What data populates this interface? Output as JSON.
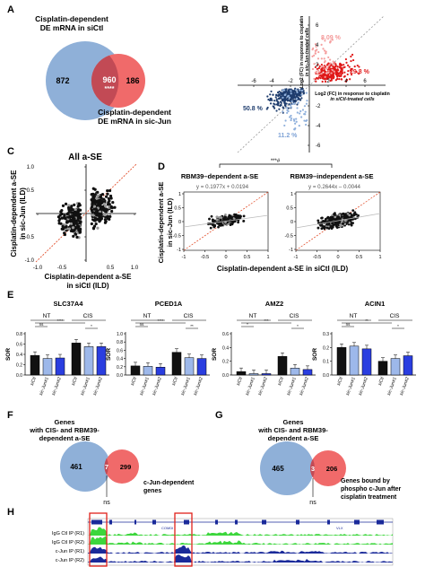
{
  "panels": {
    "A": {
      "letter": "A",
      "set1_title_line1": "Cisplatin-dependent",
      "set1_title_line2": "DE mRNA in siCtl",
      "set2_title_line1": "Cisplatin-dependent",
      "set2_title_line2": "DE mRNA in sic-Jun",
      "only1": "872",
      "both": "960",
      "sig": "****",
      "only2": "186",
      "color1": "#8fb0d8",
      "color2": "#f06a6a",
      "color_overlap": "#c24a55"
    },
    "B": {
      "letter": "B",
      "y_label_line1": "Log2 (FC) in response to cisplatin",
      "y_label_line2": "in sic-Jun-treated cells",
      "x_label_line1": "Log2 (FC) in response to cisplatin",
      "x_label_line2": "in siCtl-treated cells",
      "pct_pink": "8.09 %",
      "pct_red": "29.8 %",
      "pct_navy": "50.8 %",
      "pct_lightblue": "11.2 %",
      "x_ticks": [
        "-6",
        "-4",
        "-2",
        "2",
        "4",
        "6"
      ],
      "y_ticks": [
        "6",
        "4",
        "2",
        "-2",
        "-4",
        "-6"
      ]
    },
    "C": {
      "letter": "C",
      "title": "All a-SE",
      "y_label_line1": "Cisplatin-dependent a-SE",
      "y_label_line2": "in sic-Jun (ILD)",
      "x_label_line1": "Cisplatin-dependent a-SE",
      "x_label_line2": "in siCtl (ILD)",
      "x_ticks": [
        "-1.0",
        "-0.5",
        "0.5",
        "1.0"
      ],
      "y_ticks": [
        "1.0",
        "0.5",
        "-0.5",
        "-1.0"
      ]
    },
    "D": {
      "letter": "D",
      "sig": "***#",
      "left_title": "RBM39–dependent a-SE",
      "right_title": "RBM39–independent a-SE",
      "left_eq": "y = 0.1977x + 0.0194",
      "right_eq": "y = 0.2644x – 0.0044",
      "y_label_line1": "Cisplatin-dependent a-SE",
      "y_label_line2": "in sic-Jun (ILD)",
      "x_label": "Cisplatin-dependent a-SE in siCtl (ILD)",
      "x_ticks": [
        "-1",
        "-0.5",
        "0",
        "0.5",
        "1"
      ],
      "y_ticks": [
        "1",
        "0.5",
        "0",
        "-0.5",
        "-1"
      ]
    },
    "E": {
      "letter": "E",
      "y_label": "SOR",
      "group_nt": "NT",
      "group_cis": "CIS",
      "bar_labels": [
        "siCtl",
        "sic-Jun#1",
        "sic-Jun#2",
        "siCtl",
        "sic-Jun#1",
        "sic-Jun#2"
      ],
      "genes": [
        {
          "name": "SLC37A4",
          "ymax": 0.8,
          "ticks": [
            "0.8",
            "0.6",
            "0.4",
            "0.2",
            "0.0"
          ],
          "values": [
            0.38,
            0.32,
            0.33,
            0.62,
            0.55,
            0.55
          ],
          "sig": [
            "ns",
            "****",
            "*"
          ]
        },
        {
          "name": "PCED1A",
          "ymax": 1.0,
          "ticks": [
            "1.0",
            "0.8",
            "0.6",
            "0.4",
            "0.2",
            "0.0"
          ],
          "values": [
            0.22,
            0.21,
            0.19,
            0.55,
            0.42,
            0.4
          ],
          "sig": [
            "ns",
            "****",
            "**"
          ]
        },
        {
          "name": "AMZ2",
          "ymax": 0.6,
          "ticks": [
            "0.6",
            "0.4",
            "0.2",
            "0.0"
          ],
          "values": [
            0.05,
            0.02,
            0.02,
            0.27,
            0.1,
            0.08
          ],
          "sig": [
            "*",
            "***",
            "*"
          ]
        },
        {
          "name": "ACIN1",
          "ymax": 0.3,
          "ticks": [
            "0.3",
            "0.2",
            "0.1",
            "0.0"
          ],
          "values": [
            0.2,
            0.21,
            0.19,
            0.1,
            0.12,
            0.14
          ],
          "sig": [
            "ns",
            "**",
            "*"
          ]
        }
      ]
    },
    "F": {
      "letter": "F",
      "title_line1": "Genes",
      "title_line2": "with CIS- and RBM39-",
      "title_line3": "dependent a-SE",
      "only1": "461",
      "both": "7",
      "only2": "299",
      "set2_line1": "c-Jun-dependent",
      "set2_line2": "genes",
      "ns": "ns"
    },
    "G": {
      "letter": "G",
      "title_line1": "Genes",
      "title_line2": "with CIS- and RBM39-",
      "title_line3": "dependent a-SE",
      "only1": "465",
      "both": "3",
      "only2": "206",
      "set2_line1": "Genes bound by",
      "set2_line2": "phospho c-Jun after",
      "set2_line3": "cisplatin treatment",
      "ns": "ns"
    },
    "H": {
      "letter": "H",
      "gene_label": "COMDI",
      "gene_label_right": "VLX",
      "tracks": [
        "IgG Ctl IP (R1)",
        "IgG Ctl IP (R2)",
        "c-Jun IP (R1)",
        "c-Jun IP (R2)"
      ],
      "igg_color": "#3cd63c",
      "jun_color": "#1a2a9a"
    }
  }
}
